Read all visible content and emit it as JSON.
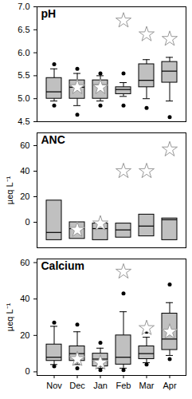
{
  "chart_data": [
    {
      "type": "box",
      "title": "pH",
      "y_label": null,
      "tick_labels": "y",
      "categories": [
        "Nov",
        "Dec",
        "Jan",
        "Feb",
        "Mar",
        "Apr"
      ],
      "ylim": [
        4.5,
        7.0
      ],
      "yticks": [
        4.5,
        {
          "value": 5,
          "label": "5.0"
        },
        5.5,
        {
          "value": 6,
          "label": "6.0"
        },
        6.5,
        {
          "value": 7,
          "label": "7.0"
        }
      ],
      "grid": false,
      "color": "#c0c0c0",
      "boxes": [
        {
          "whisker_low": 4.95,
          "q1": 5.0,
          "median": 5.15,
          "q3": 5.45,
          "whisker_high": 5.65,
          "outliers": [
            4.85,
            5.75
          ],
          "star": null
        },
        {
          "whisker_low": 4.85,
          "q1": 5.0,
          "median": 5.25,
          "q3": 5.4,
          "whisker_high": 5.55,
          "outliers": [
            4.65,
            5.65
          ],
          "star": 5.25
        },
        {
          "whisker_low": 4.95,
          "q1": 5.0,
          "median": 5.3,
          "q3": 5.4,
          "whisker_high": 5.5,
          "outliers": [
            4.85,
            5.55
          ],
          "star": 5.25
        },
        {
          "whisker_low": 5.05,
          "q1": 5.1,
          "median": 5.2,
          "q3": 5.25,
          "whisker_high": 5.35,
          "outliers": [
            4.85,
            5.55
          ],
          "star": 6.7
        },
        {
          "whisker_low": 5.0,
          "q1": 5.25,
          "median": 5.4,
          "q3": 5.75,
          "whisker_high": 5.85,
          "outliers": [
            4.8
          ],
          "star": 6.4
        },
        {
          "whisker_low": 4.95,
          "q1": 5.35,
          "median": 5.6,
          "q3": 5.8,
          "whisker_high": 5.9,
          "outliers": [
            4.6
          ],
          "star": 6.3
        }
      ]
    },
    {
      "type": "box",
      "title": "ANC",
      "y_label": "µeq L⁻¹",
      "tick_labels": "y",
      "categories": [
        "Nov",
        "Dec",
        "Jan",
        "Feb",
        "Mar",
        "Apr"
      ],
      "ylim": [
        -20,
        70
      ],
      "yticks": [
        0,
        20,
        40,
        60
      ],
      "grid": false,
      "color": "#c0c0c0",
      "boxes": [
        {
          "whisker_low": null,
          "q1": -14,
          "median": -8,
          "q3": 17,
          "whisker_high": null,
          "outliers": [],
          "star": null
        },
        {
          "whisker_low": null,
          "q1": -13,
          "median": -5,
          "q3": 0,
          "whisker_high": null,
          "outliers": [],
          "star": -6
        },
        {
          "whisker_low": null,
          "q1": -14,
          "median": -5,
          "q3": -1,
          "whisker_high": null,
          "outliers": [],
          "star": -1
        },
        {
          "whisker_low": null,
          "q1": -12,
          "median": -6,
          "q3": -1,
          "whisker_high": null,
          "outliers": [],
          "star": 40
        },
        {
          "whisker_low": null,
          "q1": -11,
          "median": -3,
          "q3": 6,
          "whisker_high": null,
          "outliers": [],
          "star": 40
        },
        {
          "whisker_low": null,
          "q1": -14,
          "median": 2,
          "q3": 3,
          "whisker_high": null,
          "outliers": [],
          "star": 57
        }
      ]
    },
    {
      "type": "box",
      "title": "Calcium",
      "y_label": "µeq L⁻¹",
      "tick_labels": true,
      "categories": [
        "Nov",
        "Dec",
        "Jan",
        "Feb",
        "Mar",
        "Apr"
      ],
      "ylim": [
        -2,
        62
      ],
      "yticks": [
        0,
        20,
        40,
        60
      ],
      "grid": false,
      "color": "#c0c0c0",
      "boxes": [
        {
          "whisker_low": 4,
          "q1": 6,
          "median": 8,
          "q3": 15,
          "whisker_high": 25,
          "outliers": [
            3,
            27
          ],
          "star": null
        },
        {
          "whisker_low": 4,
          "q1": 6,
          "median": 10,
          "q3": 14,
          "whisker_high": 22,
          "outliers": [
            2,
            26
          ],
          "star": 7
        },
        {
          "whisker_low": 2,
          "q1": 3,
          "median": 7,
          "q3": 10,
          "whisker_high": 13,
          "outliers": [
            1,
            16
          ],
          "star": 5
        },
        {
          "whisker_low": 2,
          "q1": 4,
          "median": 8,
          "q3": 20,
          "whisker_high": 33,
          "outliers": [
            1,
            43
          ],
          "star": 55
        },
        {
          "whisker_low": 5,
          "q1": 7,
          "median": 10,
          "q3": 14,
          "whisker_high": 19,
          "outliers": [
            4,
            22
          ],
          "star": 24
        },
        {
          "whisker_low": 9,
          "q1": 12,
          "median": 18,
          "q3": 32,
          "whisker_high": 38,
          "outliers": [
            7,
            48
          ],
          "star": 22
        }
      ]
    }
  ]
}
